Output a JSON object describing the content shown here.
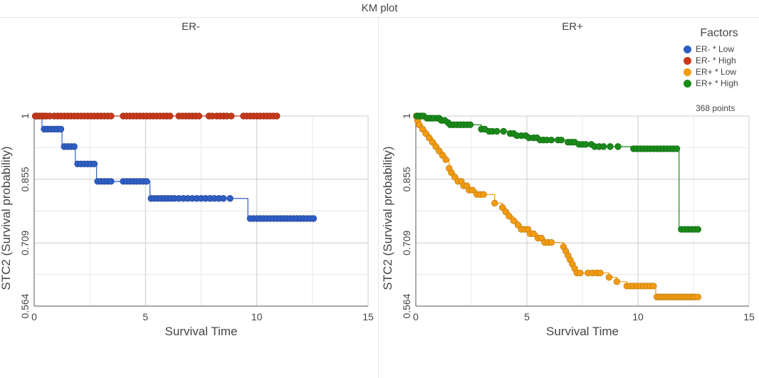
{
  "title": "KM plot",
  "legend": {
    "title": "Factors",
    "items": [
      {
        "label": "ER- * Low",
        "color": "#2f5ec4"
      },
      {
        "label": "ER- * High",
        "color": "#c8391b"
      },
      {
        "label": "ER+ * Low",
        "color": "#f39c12"
      },
      {
        "label": "ER+ * High",
        "color": "#1a8a1a"
      }
    ]
  },
  "points_label": "368 points",
  "chart_data": [
    {
      "type": "line",
      "title": "ER-",
      "xlabel": "Survival Time",
      "ylabel": "STC2 (Survival probability)",
      "xlim": [
        0,
        15
      ],
      "ylim": [
        0.564,
        1
      ],
      "xticks": [
        "0",
        "5",
        "10",
        "15"
      ],
      "yticks": [
        "0.564",
        "0.709",
        "0.855",
        "1"
      ],
      "series": [
        {
          "name": "ER- * Low",
          "color": "#2f5ec4",
          "steps": [
            [
              0,
              1
            ],
            [
              0.35,
              0.97
            ],
            [
              1.25,
              0.93
            ],
            [
              1.85,
              0.89
            ],
            [
              2.8,
              0.85
            ],
            [
              5.2,
              0.811
            ],
            [
              9.6,
              0.765
            ]
          ],
          "x": [
            0.1,
            0.45,
            0.6,
            0.75,
            0.9,
            1.05,
            1.2,
            1.35,
            1.5,
            1.65,
            1.8,
            1.95,
            2.1,
            2.25,
            2.4,
            2.55,
            2.7,
            2.85,
            3.0,
            3.15,
            3.3,
            3.45,
            4.0,
            4.15,
            4.3,
            4.45,
            4.6,
            4.75,
            4.9,
            5.05,
            5.25,
            5.4,
            5.55,
            5.7,
            5.85,
            6.0,
            6.15,
            6.3,
            6.5,
            6.7,
            6.9,
            7.1,
            7.3,
            7.5,
            7.7,
            7.9,
            8.1,
            8.3,
            8.5,
            8.8,
            9.7,
            9.85,
            10.0,
            10.15,
            10.3,
            10.45,
            10.6,
            10.75,
            10.9,
            11.05,
            11.2,
            11.35,
            11.5,
            11.65,
            11.8,
            11.95,
            12.1,
            12.25,
            12.4,
            12.55
          ],
          "y": [
            1,
            0.97,
            0.97,
            0.97,
            0.97,
            0.97,
            0.97,
            0.93,
            0.93,
            0.93,
            0.93,
            0.89,
            0.89,
            0.89,
            0.89,
            0.89,
            0.89,
            0.85,
            0.85,
            0.85,
            0.85,
            0.85,
            0.85,
            0.85,
            0.85,
            0.85,
            0.85,
            0.85,
            0.85,
            0.85,
            0.811,
            0.811,
            0.811,
            0.811,
            0.811,
            0.811,
            0.811,
            0.811,
            0.811,
            0.811,
            0.811,
            0.811,
            0.811,
            0.811,
            0.811,
            0.811,
            0.811,
            0.811,
            0.811,
            0.811,
            0.765,
            0.765,
            0.765,
            0.765,
            0.765,
            0.765,
            0.765,
            0.765,
            0.765,
            0.765,
            0.765,
            0.765,
            0.765,
            0.765,
            0.765,
            0.765,
            0.765,
            0.765,
            0.765,
            0.765
          ]
        },
        {
          "name": "ER- * High",
          "color": "#c8391b",
          "steps": [
            [
              0,
              1
            ]
          ],
          "x": [
            0.05,
            0.15,
            0.25,
            0.35,
            0.45,
            0.55,
            0.7,
            0.9,
            1.05,
            1.2,
            1.35,
            1.5,
            1.65,
            1.8,
            1.95,
            2.1,
            2.25,
            2.4,
            2.55,
            2.7,
            2.85,
            3.0,
            3.15,
            3.3,
            3.45,
            4.0,
            4.15,
            4.3,
            4.45,
            4.6,
            4.75,
            4.9,
            5.05,
            5.2,
            5.35,
            5.5,
            5.65,
            5.8,
            5.95,
            6.1,
            6.5,
            6.65,
            6.8,
            6.95,
            7.1,
            7.25,
            7.4,
            7.85,
            8.0,
            8.2,
            8.35,
            8.5,
            8.65,
            8.85,
            9.4,
            9.55,
            9.7,
            9.85,
            10.0,
            10.15,
            10.3,
            10.45,
            10.6,
            10.75,
            10.9
          ],
          "y": [
            1,
            1,
            1,
            1,
            1,
            1,
            1,
            1,
            1,
            1,
            1,
            1,
            1,
            1,
            1,
            1,
            1,
            1,
            1,
            1,
            1,
            1,
            1,
            1,
            1,
            1,
            1,
            1,
            1,
            1,
            1,
            1,
            1,
            1,
            1,
            1,
            1,
            1,
            1,
            1,
            1,
            1,
            1,
            1,
            1,
            1,
            1,
            1,
            1,
            1,
            1,
            1,
            1,
            1,
            1,
            1,
            1,
            1,
            1,
            1,
            1,
            1,
            1,
            1,
            1
          ]
        }
      ]
    },
    {
      "type": "line",
      "title": "ER+",
      "xlabel": "Survival Time",
      "ylabel": "STC2 (Survival probability)",
      "xlim": [
        0,
        15
      ],
      "ylim": [
        0.564,
        1
      ],
      "xticks": [
        "0",
        "5",
        "10",
        "15"
      ],
      "yticks": [
        "0.564",
        "0.709",
        "0.855",
        "1"
      ],
      "series": [
        {
          "name": "ER+ * Low",
          "color": "#f39c12",
          "steps": [
            [
              0,
              1
            ],
            [
              0.05,
              0.99
            ],
            [
              0.15,
              0.98
            ],
            [
              0.3,
              0.97
            ],
            [
              0.45,
              0.96
            ],
            [
              0.6,
              0.95
            ],
            [
              0.75,
              0.94
            ],
            [
              0.9,
              0.93
            ],
            [
              1.05,
              0.92
            ],
            [
              1.2,
              0.91
            ],
            [
              1.35,
              0.9
            ],
            [
              1.5,
              0.88
            ],
            [
              1.6,
              0.87
            ],
            [
              1.75,
              0.86
            ],
            [
              1.9,
              0.85
            ],
            [
              2.15,
              0.84
            ],
            [
              2.4,
              0.83
            ],
            [
              2.75,
              0.82
            ],
            [
              3.55,
              0.8
            ],
            [
              3.9,
              0.79
            ],
            [
              4.05,
              0.78
            ],
            [
              4.2,
              0.77
            ],
            [
              4.4,
              0.76
            ],
            [
              4.6,
              0.75
            ],
            [
              4.75,
              0.74
            ],
            [
              5.15,
              0.73
            ],
            [
              5.5,
              0.72
            ],
            [
              5.8,
              0.71
            ],
            [
              6.65,
              0.7
            ],
            [
              6.75,
              0.69
            ],
            [
              6.85,
              0.68
            ],
            [
              6.95,
              0.67
            ],
            [
              7.05,
              0.66
            ],
            [
              7.15,
              0.65
            ],
            [
              7.25,
              0.64
            ],
            [
              8.7,
              0.63
            ],
            [
              9.05,
              0.62
            ],
            [
              9.5,
              0.61
            ],
            [
              10.8,
              0.585
            ]
          ],
          "x": [
            0.02,
            0.08,
            0.15,
            0.3,
            0.45,
            0.6,
            0.75,
            0.9,
            1.05,
            1.2,
            1.35,
            1.5,
            1.6,
            1.75,
            1.9,
            2.05,
            2.15,
            2.3,
            2.4,
            2.55,
            2.75,
            2.9,
            3.05,
            3.55,
            3.9,
            4.05,
            4.2,
            4.4,
            4.6,
            4.75,
            4.9,
            5.05,
            5.15,
            5.3,
            5.5,
            5.65,
            5.8,
            5.95,
            6.1,
            6.65,
            6.75,
            6.85,
            6.95,
            7.05,
            7.15,
            7.25,
            7.4,
            7.75,
            7.95,
            8.15,
            8.3,
            8.7,
            9.05,
            9.5,
            9.65,
            9.8,
            9.95,
            10.1,
            10.25,
            10.4,
            10.55,
            10.7,
            10.85,
            10.95,
            11.05,
            11.15,
            11.25,
            11.35,
            11.45,
            11.55,
            11.65,
            11.75,
            11.85,
            11.95,
            12.05,
            12.15,
            12.25,
            12.35,
            12.45,
            12.55,
            12.7
          ],
          "y": [
            1,
            0.99,
            0.98,
            0.97,
            0.96,
            0.95,
            0.94,
            0.93,
            0.92,
            0.91,
            0.9,
            0.88,
            0.87,
            0.86,
            0.85,
            0.85,
            0.84,
            0.84,
            0.83,
            0.83,
            0.82,
            0.82,
            0.82,
            0.8,
            0.79,
            0.78,
            0.77,
            0.76,
            0.75,
            0.74,
            0.74,
            0.74,
            0.73,
            0.73,
            0.72,
            0.72,
            0.71,
            0.71,
            0.71,
            0.7,
            0.69,
            0.68,
            0.67,
            0.66,
            0.65,
            0.64,
            0.64,
            0.64,
            0.64,
            0.64,
            0.64,
            0.63,
            0.62,
            0.61,
            0.61,
            0.61,
            0.61,
            0.61,
            0.61,
            0.61,
            0.61,
            0.61,
            0.585,
            0.585,
            0.585,
            0.585,
            0.585,
            0.585,
            0.585,
            0.585,
            0.585,
            0.585,
            0.585,
            0.585,
            0.585,
            0.585,
            0.585,
            0.585,
            0.585,
            0.585,
            0.585
          ]
        },
        {
          "name": "ER+ * High",
          "color": "#1a8a1a",
          "steps": [
            [
              0,
              1
            ],
            [
              0.45,
              0.995
            ],
            [
              1.15,
              0.99
            ],
            [
              1.35,
              0.985
            ],
            [
              1.55,
              0.98
            ],
            [
              2.95,
              0.97
            ],
            [
              3.3,
              0.965
            ],
            [
              4.25,
              0.96
            ],
            [
              4.55,
              0.955
            ],
            [
              5.1,
              0.95
            ],
            [
              5.6,
              0.945
            ],
            [
              6.85,
              0.94
            ],
            [
              7.35,
              0.935
            ],
            [
              8.05,
              0.93
            ],
            [
              9.8,
              0.925
            ],
            [
              11.85,
              0.74
            ]
          ],
          "x": [
            0.05,
            0.15,
            0.25,
            0.35,
            0.5,
            0.6,
            0.7,
            0.8,
            0.95,
            1.05,
            1.15,
            1.3,
            1.45,
            1.55,
            1.7,
            1.85,
            2.0,
            2.15,
            2.3,
            2.45,
            2.95,
            3.1,
            3.3,
            3.45,
            3.65,
            3.95,
            4.25,
            4.4,
            4.55,
            4.75,
            4.95,
            5.1,
            5.3,
            5.45,
            5.6,
            5.75,
            5.9,
            6.1,
            6.4,
            6.55,
            6.85,
            7.0,
            7.15,
            7.35,
            7.5,
            7.65,
            7.9,
            8.05,
            8.25,
            8.45,
            8.75,
            9.1,
            9.8,
            9.95,
            10.1,
            10.25,
            10.4,
            10.55,
            10.7,
            10.85,
            11.0,
            11.15,
            11.3,
            11.45,
            11.6,
            11.75,
            11.95,
            12.1,
            12.25,
            12.4,
            12.55,
            12.7
          ],
          "y": [
            1,
            1,
            1,
            1,
            0.995,
            0.995,
            0.995,
            0.995,
            0.995,
            0.995,
            0.99,
            0.99,
            0.985,
            0.98,
            0.98,
            0.98,
            0.98,
            0.98,
            0.98,
            0.98,
            0.97,
            0.97,
            0.965,
            0.965,
            0.965,
            0.965,
            0.96,
            0.96,
            0.955,
            0.955,
            0.955,
            0.95,
            0.95,
            0.95,
            0.945,
            0.945,
            0.945,
            0.945,
            0.945,
            0.945,
            0.94,
            0.94,
            0.94,
            0.935,
            0.935,
            0.935,
            0.935,
            0.93,
            0.93,
            0.93,
            0.93,
            0.93,
            0.925,
            0.925,
            0.925,
            0.925,
            0.925,
            0.925,
            0.925,
            0.925,
            0.925,
            0.925,
            0.925,
            0.925,
            0.925,
            0.925,
            0.74,
            0.74,
            0.74,
            0.74,
            0.74,
            0.74
          ]
        }
      ]
    }
  ]
}
